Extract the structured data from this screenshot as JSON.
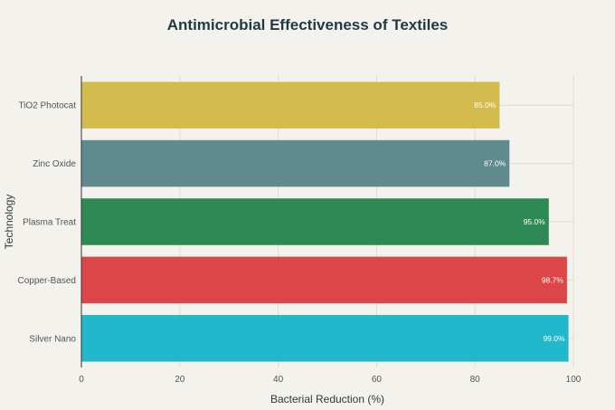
{
  "chart_data": {
    "type": "bar",
    "orientation": "horizontal",
    "title": "Antimicrobial Effectiveness of Textiles",
    "xlabel": "Bacterial Reduction (%)",
    "ylabel": "Technology",
    "xlim": [
      0,
      100
    ],
    "xticks": [
      0,
      20,
      40,
      60,
      80,
      100
    ],
    "grid": true,
    "categories": [
      "TiO2 Photocat",
      "Zinc Oxide",
      "Plasma Treat",
      "Copper-Based",
      "Silver Nano"
    ],
    "values": [
      85.0,
      87.0,
      95.0,
      98.7,
      99.0
    ],
    "data_labels": [
      "85.0%",
      "87.0%",
      "95.0%",
      "98.7%",
      "99.0%"
    ],
    "colors": [
      "#d4bb4e",
      "#5f8a8e",
      "#2e8a55",
      "#dc4648",
      "#21b8cc"
    ]
  }
}
